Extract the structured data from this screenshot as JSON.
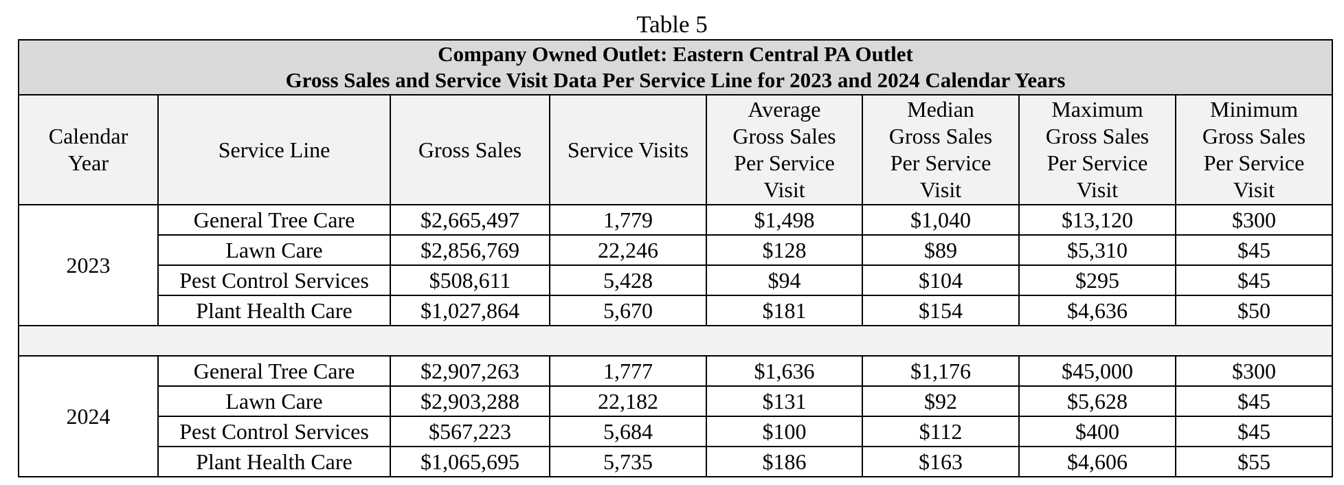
{
  "caption": "Table 5",
  "title_line1": "Company Owned Outlet: Eastern Central PA Outlet",
  "title_line2": "Gross Sales and Service Visit Data Per Service Line for 2023 and 2024 Calendar Years",
  "headers": {
    "year": [
      "Calendar",
      "Year"
    ],
    "service_line": "Service Line",
    "gross_sales": "Gross Sales",
    "service_visits": "Service Visits",
    "average": [
      "Average",
      "Gross Sales",
      "Per Service",
      "Visit"
    ],
    "median": [
      "Median",
      "Gross Sales",
      "Per Service",
      "Visit"
    ],
    "maximum": [
      "Maximum",
      "Gross Sales",
      "Per Service",
      "Visit"
    ],
    "minimum": [
      "Minimum",
      "Gross Sales",
      "Per Service",
      "Visit"
    ]
  },
  "groups": [
    {
      "year": "2023",
      "rows": [
        {
          "line": "General Tree Care",
          "gross": "$2,665,497",
          "visits": "1,779",
          "avg": "$1,498",
          "median": "$1,040",
          "max": "$13,120",
          "min": "$300"
        },
        {
          "line": "Lawn Care",
          "gross": "$2,856,769",
          "visits": "22,246",
          "avg": "$128",
          "median": "$89",
          "max": "$5,310",
          "min": "$45"
        },
        {
          "line": "Pest Control Services",
          "gross": "$508,611",
          "visits": "5,428",
          "avg": "$94",
          "median": "$104",
          "max": "$295",
          "min": "$45"
        },
        {
          "line": "Plant Health Care",
          "gross": "$1,027,864",
          "visits": "5,670",
          "avg": "$181",
          "median": "$154",
          "max": "$4,636",
          "min": "$50"
        }
      ]
    },
    {
      "year": "2024",
      "rows": [
        {
          "line": "General Tree Care",
          "gross": "$2,907,263",
          "visits": "1,777",
          "avg": "$1,636",
          "median": "$1,176",
          "max": "$45,000",
          "min": "$300"
        },
        {
          "line": "Lawn Care",
          "gross": "$2,903,288",
          "visits": "22,182",
          "avg": "$131",
          "median": "$92",
          "max": "$5,628",
          "min": "$45"
        },
        {
          "line": "Pest Control Services",
          "gross": "$567,223",
          "visits": "5,684",
          "avg": "$100",
          "median": "$112",
          "max": "$400",
          "min": "$45"
        },
        {
          "line": "Plant Health Care",
          "gross": "$1,065,695",
          "visits": "5,735",
          "avg": "$186",
          "median": "$163",
          "max": "$4,606",
          "min": "$55"
        }
      ]
    }
  ]
}
